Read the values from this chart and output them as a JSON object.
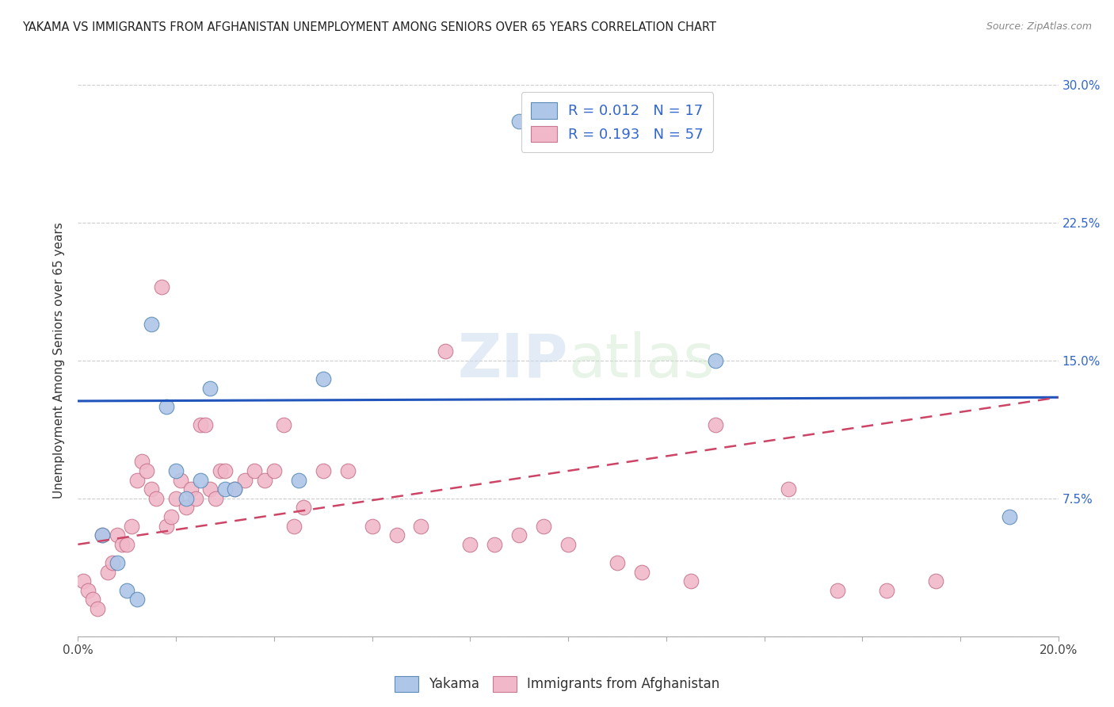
{
  "title": "YAKAMA VS IMMIGRANTS FROM AFGHANISTAN UNEMPLOYMENT AMONG SENIORS OVER 65 YEARS CORRELATION CHART",
  "source": "Source: ZipAtlas.com",
  "ylabel": "Unemployment Among Seniors over 65 years",
  "xlim": [
    0.0,
    0.2
  ],
  "ylim": [
    0.0,
    0.3
  ],
  "xticks": [
    0.0,
    0.02,
    0.04,
    0.06,
    0.08,
    0.1,
    0.12,
    0.14,
    0.16,
    0.18,
    0.2
  ],
  "yticks": [
    0.0,
    0.075,
    0.15,
    0.225,
    0.3
  ],
  "ytick_labels_right": [
    "",
    "7.5%",
    "15.0%",
    "22.5%",
    "30.0%"
  ],
  "yakama_color": "#aec6e8",
  "yakama_edge": "#5b8db8",
  "afghanistan_color": "#f0b8c8",
  "afghanistan_edge": "#c87890",
  "trend_yakama_color": "#2255bb",
  "trend_afghanistan_color": "#cc4466",
  "watermark": "ZIPatlas",
  "yakama_x": [
    0.005,
    0.008,
    0.01,
    0.012,
    0.015,
    0.018,
    0.02,
    0.022,
    0.025,
    0.027,
    0.03,
    0.032,
    0.045,
    0.05,
    0.09,
    0.13,
    0.19
  ],
  "yakama_y": [
    0.055,
    0.04,
    0.025,
    0.02,
    0.17,
    0.125,
    0.09,
    0.075,
    0.085,
    0.135,
    0.08,
    0.08,
    0.085,
    0.14,
    0.28,
    0.15,
    0.065
  ],
  "afghanistan_x": [
    0.001,
    0.002,
    0.003,
    0.004,
    0.005,
    0.006,
    0.007,
    0.008,
    0.009,
    0.01,
    0.011,
    0.012,
    0.013,
    0.014,
    0.015,
    0.016,
    0.017,
    0.018,
    0.019,
    0.02,
    0.021,
    0.022,
    0.023,
    0.024,
    0.025,
    0.026,
    0.027,
    0.028,
    0.029,
    0.03,
    0.032,
    0.034,
    0.036,
    0.038,
    0.04,
    0.042,
    0.044,
    0.046,
    0.05,
    0.055,
    0.06,
    0.065,
    0.07,
    0.075,
    0.08,
    0.085,
    0.09,
    0.095,
    0.1,
    0.11,
    0.115,
    0.125,
    0.13,
    0.145,
    0.155,
    0.165,
    0.175
  ],
  "afghanistan_y": [
    0.03,
    0.025,
    0.02,
    0.015,
    0.055,
    0.035,
    0.04,
    0.055,
    0.05,
    0.05,
    0.06,
    0.085,
    0.095,
    0.09,
    0.08,
    0.075,
    0.19,
    0.06,
    0.065,
    0.075,
    0.085,
    0.07,
    0.08,
    0.075,
    0.115,
    0.115,
    0.08,
    0.075,
    0.09,
    0.09,
    0.08,
    0.085,
    0.09,
    0.085,
    0.09,
    0.115,
    0.06,
    0.07,
    0.09,
    0.09,
    0.06,
    0.055,
    0.06,
    0.155,
    0.05,
    0.05,
    0.055,
    0.06,
    0.05,
    0.04,
    0.035,
    0.03,
    0.115,
    0.08,
    0.025,
    0.025,
    0.03
  ],
  "r_yakama": 0.012,
  "n_yakama": 17,
  "r_afghanistan": 0.193,
  "n_afghanistan": 57,
  "yakama_trend_x": [
    0.0,
    0.2
  ],
  "yakama_trend_y": [
    0.128,
    0.13
  ],
  "afghanistan_trend_x": [
    0.0,
    0.2
  ],
  "afghanistan_trend_y": [
    0.05,
    0.13
  ]
}
